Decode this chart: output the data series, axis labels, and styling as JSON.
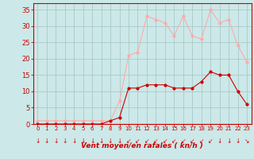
{
  "hours": [
    0,
    1,
    2,
    3,
    4,
    5,
    6,
    7,
    8,
    9,
    10,
    11,
    12,
    13,
    14,
    15,
    16,
    17,
    18,
    19,
    20,
    21,
    22,
    23
  ],
  "wind_avg": [
    0,
    0,
    0,
    0,
    0,
    0,
    0,
    0,
    1,
    2,
    11,
    11,
    12,
    12,
    12,
    11,
    11,
    11,
    13,
    16,
    15,
    15,
    10,
    6
  ],
  "wind_gust": [
    1,
    1,
    1,
    1,
    1,
    1,
    1,
    1,
    1,
    7,
    21,
    22,
    33,
    32,
    31,
    27,
    33,
    27,
    26,
    35,
    31,
    32,
    24,
    19
  ],
  "avg_color": "#cc0000",
  "gust_color": "#ffaaaa",
  "bg_color": "#cce8e8",
  "grid_color": "#aacaca",
  "axis_color": "#cc0000",
  "tick_color": "#cc0000",
  "xlabel": "Vent moyen/en rafales ( kn/h )",
  "yticks": [
    0,
    5,
    10,
    15,
    20,
    25,
    30,
    35
  ],
  "ylim": [
    0,
    37
  ],
  "xlim": [
    -0.5,
    23.5
  ]
}
